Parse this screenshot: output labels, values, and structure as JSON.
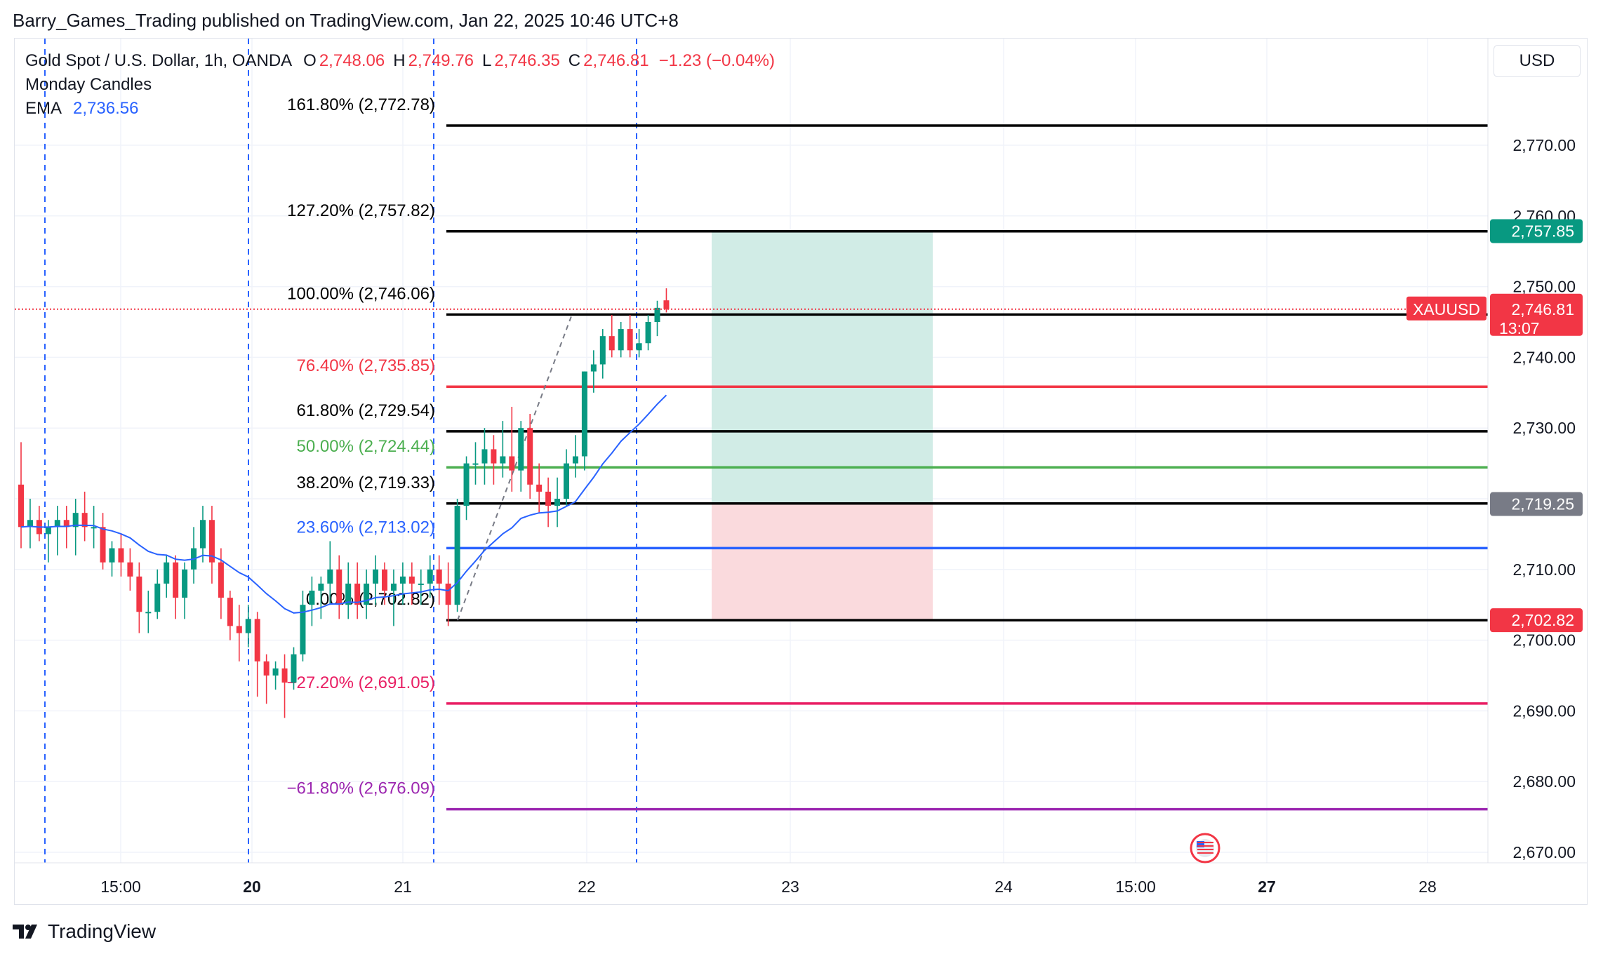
{
  "header": {
    "text": "Barry_Games_Trading published on TradingView.com, Jan 22, 2025 10:46 UTC+8"
  },
  "legend": {
    "symbol": "Gold Spot / U.S. Dollar, 1h, OANDA",
    "open_label": "O",
    "open": "2,748.06",
    "high_label": "H",
    "high": "2,749.76",
    "low_label": "L",
    "low": "2,746.35",
    "close_label": "C",
    "close": "2,746.81",
    "change": "−1.23 (−0.04%)",
    "indicator1": "Monday Candles",
    "ema_label": "EMA",
    "ema_value": "2,736.56"
  },
  "currency": "USD",
  "colors": {
    "up": "#089981",
    "down": "#f23645",
    "ema": "#2962ff",
    "fib_black": "#000000",
    "fib_red": "#f23645",
    "fib_green": "#4caf50",
    "fib_blue": "#2962ff",
    "fib_magenta": "#e91e63",
    "fib_purple": "#9c27b0",
    "target_zone": "#d1ece6",
    "stop_zone": "#fadadd"
  },
  "fib_levels": [
    {
      "label": "161.80% (2,772.78)",
      "price": 2772.78,
      "color": "#000000"
    },
    {
      "label": "127.20% (2,757.82)",
      "price": 2757.82,
      "color": "#000000"
    },
    {
      "label": "100.00% (2,746.06)",
      "price": 2746.06,
      "color": "#000000"
    },
    {
      "label": "76.40% (2,735.85)",
      "price": 2735.85,
      "color": "#f23645"
    },
    {
      "label": "61.80% (2,729.54)",
      "price": 2729.54,
      "color": "#000000"
    },
    {
      "label": "50.00% (2,724.44)",
      "price": 2724.44,
      "color": "#4caf50"
    },
    {
      "label": "38.20% (2,719.33)",
      "price": 2719.33,
      "color": "#000000"
    },
    {
      "label": "23.60% (2,713.02)",
      "price": 2713.02,
      "color": "#2962ff"
    },
    {
      "label": "0.00% (2,702.82)",
      "price": 2702.82,
      "color": "#000000"
    },
    {
      "label": "−27.20% (2,691.05)",
      "price": 2691.05,
      "color": "#e91e63"
    },
    {
      "label": "−61.80% (2,676.09)",
      "price": 2676.09,
      "color": "#9c27b0"
    }
  ],
  "price_axis": {
    "range": [
      2666,
      2786
    ],
    "ticks": [
      "2,770.00",
      "2,760.00",
      "2,750.00",
      "2,740.00",
      "2,730.00",
      "2,720.00",
      "2,710.00",
      "2,700.00",
      "2,690.00",
      "2,680.00",
      "2,670.00"
    ],
    "tick_values": [
      2770,
      2760,
      2750,
      2740,
      2730,
      2720,
      2710,
      2700,
      2690,
      2680,
      2670
    ]
  },
  "price_badges": [
    {
      "value": "2,757.85",
      "price": 2757.85,
      "color": "#089981"
    },
    {
      "value": "2,719.25",
      "price": 2719.25,
      "color": "#787b86"
    },
    {
      "value": "2,702.82",
      "price": 2702.82,
      "color": "#f23645"
    }
  ],
  "current_price": {
    "symbol": "XAUUSD",
    "value": "2,746.81",
    "countdown": "13:07",
    "price": 2746.81
  },
  "time_axis": {
    "labels": [
      {
        "text": "15:00",
        "bold": false
      },
      {
        "text": "20",
        "bold": true
      },
      {
        "text": "21",
        "bold": false
      },
      {
        "text": "22",
        "bold": false
      },
      {
        "text": "23",
        "bold": false
      },
      {
        "text": "24",
        "bold": false
      },
      {
        "text": "15:00",
        "bold": false
      },
      {
        "text": "27",
        "bold": true
      },
      {
        "text": "28",
        "bold": false
      }
    ]
  },
  "position": {
    "entry": 2719.25,
    "target": 2757.85,
    "stop": 2702.82
  },
  "footer": {
    "brand": "TradingView"
  },
  "chart_data": {
    "type": "candlestick",
    "symbol": "XAUUSD",
    "timeframe": "1h",
    "candles": [
      [
        2722,
        2728,
        2713,
        2716
      ],
      [
        2716,
        2720,
        2713,
        2717
      ],
      [
        2717,
        2719,
        2714,
        2715
      ],
      [
        2715,
        2717,
        2711,
        2716
      ],
      [
        2716,
        2719,
        2712,
        2717
      ],
      [
        2717,
        2719,
        2713,
        2716
      ],
      [
        2716,
        2720,
        2712,
        2718
      ],
      [
        2718,
        2721,
        2714,
        2716
      ],
      [
        2716,
        2719,
        2713,
        2716
      ],
      [
        2716,
        2718,
        2710,
        2711
      ],
      [
        2711,
        2714,
        2709,
        2713
      ],
      [
        2713,
        2715,
        2709,
        2711
      ],
      [
        2711,
        2713,
        2707,
        2709
      ],
      [
        2709,
        2711,
        2701,
        2704
      ],
      [
        2704,
        2707,
        2701,
        2704
      ],
      [
        2704,
        2710,
        2703,
        2708
      ],
      [
        2708,
        2712,
        2706,
        2711
      ],
      [
        2711,
        2712,
        2703,
        2706
      ],
      [
        2706,
        2711,
        2703,
        2710
      ],
      [
        2710,
        2716,
        2708,
        2713
      ],
      [
        2713,
        2719,
        2711,
        2717
      ],
      [
        2717,
        2719,
        2708,
        2711
      ],
      [
        2711,
        2713,
        2703,
        2706
      ],
      [
        2706,
        2707,
        2700,
        2702
      ],
      [
        2702,
        2705,
        2697,
        2701
      ],
      [
        2701,
        2705,
        2699,
        2703
      ],
      [
        2703,
        2704,
        2692,
        2697
      ],
      [
        2697,
        2698,
        2691,
        2695
      ],
      [
        2695,
        2697,
        2693,
        2696
      ],
      [
        2696,
        2698,
        2689,
        2694
      ],
      [
        2694,
        2699,
        2693,
        2698
      ],
      [
        2698,
        2707,
        2697,
        2705
      ],
      [
        2705,
        2709,
        2702,
        2707
      ],
      [
        2707,
        2709,
        2703,
        2708
      ],
      [
        2708,
        2714,
        2705,
        2710
      ],
      [
        2710,
        2712,
        2703,
        2705
      ],
      [
        2705,
        2711,
        2703,
        2708
      ],
      [
        2708,
        2711,
        2703,
        2705
      ],
      [
        2705,
        2710,
        2703,
        2708
      ],
      [
        2708,
        2712,
        2705,
        2710
      ],
      [
        2710,
        2711,
        2705,
        2707
      ],
      [
        2707,
        2710,
        2702,
        2708
      ],
      [
        2708,
        2711,
        2705,
        2709
      ],
      [
        2709,
        2711,
        2705,
        2708
      ],
      [
        2708,
        2710,
        2705,
        2708
      ],
      [
        2708,
        2712,
        2706,
        2710
      ],
      [
        2710,
        2712,
        2705,
        2708
      ],
      [
        2708,
        2711,
        2702,
        2705
      ],
      [
        2705,
        2720,
        2704,
        2719
      ],
      [
        2719,
        2726,
        2717,
        2725
      ],
      [
        2725,
        2728,
        2722,
        2725
      ],
      [
        2725,
        2730,
        2722,
        2727
      ],
      [
        2727,
        2729,
        2722,
        2725
      ],
      [
        2725,
        2731,
        2723,
        2726
      ],
      [
        2726,
        2733,
        2721,
        2724
      ],
      [
        2724,
        2731,
        2721,
        2730
      ],
      [
        2730,
        2732,
        2720,
        2722
      ],
      [
        2722,
        2725,
        2718,
        2721
      ],
      [
        2721,
        2723,
        2716,
        2719
      ],
      [
        2719,
        2723,
        2716,
        2720
      ],
      [
        2720,
        2727,
        2719,
        2725
      ],
      [
        2725,
        2729,
        2723,
        2726
      ],
      [
        2726,
        2738,
        2724,
        2738
      ],
      [
        2738,
        2741,
        2735,
        2739
      ],
      [
        2739,
        2744,
        2737,
        2743
      ],
      [
        2743,
        2746,
        2740,
        2741
      ],
      [
        2741,
        2745,
        2740,
        2744
      ],
      [
        2744,
        2746,
        2740,
        2741
      ],
      [
        2741,
        2744,
        2740,
        2742
      ],
      [
        2742,
        2746,
        2741,
        2745
      ],
      [
        2745,
        2748,
        2743,
        2747
      ],
      [
        2748.06,
        2749.76,
        2746.35,
        2746.81
      ]
    ]
  }
}
